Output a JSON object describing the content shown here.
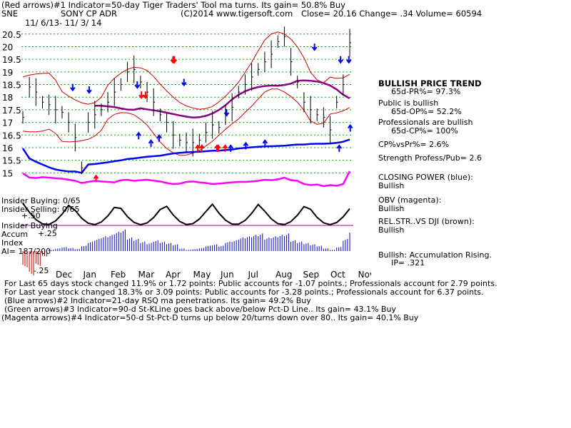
{
  "header": {
    "line1": "(Red arrows)#1 Indicator=50-day Tiger Traders' Tool ma turns. Its gain= 50.8% Buy",
    "ticker": "SNE",
    "company": "SONY CP ADR",
    "copyright": "(C)2014 www.tigersoft.com",
    "quote": "Close=  20.16  Change= .34 Volume= 60594",
    "date_range": "11/ 6/13- 11/ 3/ 14"
  },
  "colors": {
    "price": "#000000",
    "bands": "#d00000",
    "ma_65": "#8b0080",
    "closing_power": "#0000ff",
    "obv": "#ff00ff",
    "rel_str": "#8b4513",
    "accumulation": "#0000cc",
    "accum_negative": "#cc0000",
    "grid": "#00aa00",
    "blue_arrow": "#0000ff",
    "red_arrow": "#ff0000"
  },
  "chart_data": {
    "type": "line",
    "title": "SONY CP ADR",
    "ylim": [
      14.5,
      21.2
    ],
    "yticks": [
      "20.5",
      "20",
      "19.5",
      "19",
      "18.5",
      "18",
      "17.5",
      "17",
      "16.5",
      "16",
      "15.5",
      "15"
    ],
    "months": [
      "Dec",
      "Jan",
      "Feb",
      "Mar",
      "Apr",
      "May",
      "Jun",
      "Jul",
      "Aug",
      "Sep",
      "Oct",
      "Nov"
    ],
    "series": [
      {
        "values": [
          17.2,
          18.4,
          18.2,
          17.8,
          17.7,
          17.5,
          17.4,
          17.0,
          16.4,
          15.2,
          17.0,
          17.3,
          17.5,
          17.8,
          18.2,
          18.5,
          19.0,
          19.1,
          18.6,
          18.2,
          17.8,
          17.3,
          17.0,
          16.5,
          16.3,
          16.2,
          16.2,
          16.3,
          16.6,
          16.9,
          16.8,
          17.3,
          17.6,
          18.2,
          18.5,
          18.8,
          19.1,
          19.4,
          19.7,
          20.2,
          20.4,
          19.4,
          18.6,
          17.8,
          17.5,
          17.3,
          17.2,
          16.7,
          17.8,
          18.5,
          20.16
        ]
      },
      {
        "name": "Closing Power",
        "values": [
          0.88,
          0.52,
          0.4,
          0.3,
          0.2,
          0.12,
          0.08,
          0.05,
          0.05,
          0.0,
          0.3,
          0.32,
          0.35,
          0.38,
          0.42,
          0.45,
          0.5,
          0.52,
          0.55,
          0.58,
          0.6,
          0.62,
          0.66,
          0.7,
          0.72,
          0.74,
          0.75,
          0.76,
          0.78,
          0.8,
          0.8,
          0.82,
          0.84,
          0.88,
          0.9,
          0.92,
          0.94,
          0.95,
          0.96,
          0.97,
          0.98,
          1.0,
          1.02,
          1.02,
          1.04,
          1.05,
          1.05,
          1.06,
          1.08,
          1.12,
          1.2
        ]
      },
      {
        "name": "OBV",
        "values": [
          0.1,
          0.3,
          0.32,
          0.28,
          0.3,
          0.33,
          0.35,
          0.4,
          0.45,
          0.55,
          0.5,
          0.45,
          0.48,
          0.5,
          0.52,
          0.42,
          0.4,
          0.45,
          0.42,
          0.4,
          0.44,
          0.48,
          0.55,
          0.6,
          0.58,
          0.5,
          0.48,
          0.52,
          0.55,
          0.6,
          0.58,
          0.55,
          0.52,
          0.5,
          0.5,
          0.48,
          0.45,
          0.4,
          0.42,
          0.38,
          0.3,
          0.42,
          0.45,
          0.6,
          0.65,
          0.62,
          0.7,
          0.65,
          0.68,
          0.6,
          0.0
        ]
      },
      {
        "name": "Accumulation Index",
        "values": [
          -0.6,
          -0.9,
          -0.55,
          -0.2,
          0.05,
          0.1,
          0.15,
          0.12,
          0.08,
          0.2,
          0.35,
          0.45,
          0.55,
          0.6,
          0.72,
          0.8,
          0.5,
          0.45,
          0.35,
          0.3,
          0.4,
          0.35,
          0.3,
          0.25,
          0.1,
          0.05,
          0.08,
          0.12,
          0.2,
          0.25,
          0.2,
          0.35,
          0.4,
          0.5,
          0.55,
          0.6,
          0.65,
          0.5,
          0.55,
          0.6,
          0.65,
          0.4,
          0.35,
          0.3,
          0.25,
          0.2,
          0.1,
          0.05,
          0.15,
          0.45,
          0.8
        ]
      }
    ],
    "red_arrows_down": [
      [
        3.95,
        18.0
      ],
      [
        4.1,
        18.0
      ],
      [
        5.1,
        19.4
      ],
      [
        5.15,
        19.4
      ]
    ],
    "red_arrows_up": [
      [
        2.3,
        15.0
      ],
      [
        6.0,
        16.2
      ],
      [
        6.15,
        16.2
      ],
      [
        6.7,
        16.2
      ],
      [
        6.75,
        16.2
      ],
      [
        7.0,
        16.2
      ]
    ],
    "blue_arrows_down": [
      [
        1.45,
        18.3
      ],
      [
        2.05,
        18.2
      ],
      [
        3.8,
        18.4
      ],
      [
        5.5,
        18.5
      ],
      [
        7.05,
        17.3
      ],
      [
        10.25,
        19.9
      ],
      [
        11.2,
        19.4
      ],
      [
        11.5,
        19.4
      ]
    ],
    "blue_arrows_up": [
      [
        3.85,
        16.7
      ],
      [
        4.3,
        16.4
      ],
      [
        4.6,
        16.6
      ],
      [
        7.2,
        16.2
      ],
      [
        7.75,
        16.3
      ],
      [
        8.45,
        16.4
      ],
      [
        11.15,
        16.2
      ],
      [
        11.55,
        17.0
      ]
    ]
  },
  "subpanel_labels": {
    "insider_buying": "Insider Buying: 0/65",
    "insider_selling": "Insider Selling: 0/65",
    "plus50": "+.50",
    "insider_buying2": "Insider Buying",
    "accum": "Accum",
    "plus25": "+.25",
    "index": "Index",
    "ai": "AI= 187/200",
    "minus25": "-.25"
  },
  "side_panel": {
    "trend_title": "BULLISH PRICE TREND",
    "pr": "65d-PR%= 97.3%",
    "public": "Public is bullish",
    "op": "65d-OP%= 52.2%",
    "professionals": "Professionals are bullish",
    "cp": "65d-CP%= 100%",
    "cpvspr": "CP%vsPr%=  2.6%",
    "strength": "Strength Profess/Pub= 2.6",
    "closing_power": "CLOSING POWER (blue):",
    "closing_power_val": "Bullish",
    "obv": "OBV (magenta):",
    "obv_val": "Bullish",
    "relstr": "REL.STR..VS DJI (brown):",
    "relstr_val": "Bullish",
    "accum": "Bullish: Accumulation Rising.",
    "ip": "IP= .321"
  },
  "footer": {
    "line1": "For Last 65 days stock changed  11.9% or  1.72 points:  Public accounts for -1.07 points.;  Professionals account for  2.79 points.",
    "line2": "For Last year stock changed  18.3% or  3.09 points:  Public accounts for -3.28 points.;  Professionals account for  6.37 points.",
    "line3": "(Blue arrows)#2 Indicator=21-day RSQ ma penetrations. Its gain= 49.2% Buy",
    "line4": "(Green arrows)#3 Indicator=90-d St-KLine goes back above/below Pct-D Line.. Its gain= 43.1% Buy",
    "line5": "(Magenta arrows)#4 Indicator=50-d St-Pct-D turns up below 20/turns down over 80.. Its gain= 40.1% Buy"
  }
}
